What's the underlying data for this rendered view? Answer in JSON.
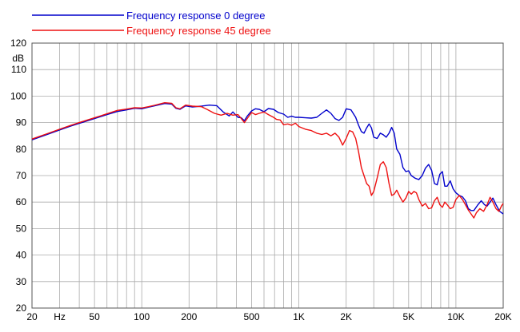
{
  "chart_data": {
    "type": "line",
    "title": "",
    "xlabel": "Hz",
    "ylabel": "dB",
    "x_scale": "log",
    "xlim": [
      20,
      20000
    ],
    "ylim": [
      20,
      120
    ],
    "grid": true,
    "legend_position": "top-left",
    "x_ticks": [
      {
        "value": 20,
        "label": "20"
      },
      {
        "value": 30,
        "label": "Hz"
      },
      {
        "value": 50,
        "label": "50"
      },
      {
        "value": 100,
        "label": "100"
      },
      {
        "value": 200,
        "label": "200"
      },
      {
        "value": 500,
        "label": "500"
      },
      {
        "value": 1000,
        "label": "1K"
      },
      {
        "value": 2000,
        "label": "2K"
      },
      {
        "value": 5000,
        "label": "5K"
      },
      {
        "value": 10000,
        "label": "10K"
      },
      {
        "value": 20000,
        "label": "20K"
      }
    ],
    "y_ticks": [
      {
        "value": 20,
        "label": "20"
      },
      {
        "value": 30,
        "label": "30"
      },
      {
        "value": 40,
        "label": "40"
      },
      {
        "value": 50,
        "label": "50"
      },
      {
        "value": 60,
        "label": "60"
      },
      {
        "value": 70,
        "label": "70"
      },
      {
        "value": 80,
        "label": "80"
      },
      {
        "value": 90,
        "label": "90"
      },
      {
        "value": 100,
        "label": "100"
      },
      {
        "value": 110,
        "label": "110"
      },
      {
        "value": 120,
        "label": "120"
      }
    ],
    "series": [
      {
        "name": "Frequency response 0 degree",
        "color": "#0000cc",
        "points": [
          [
            20,
            83.5
          ],
          [
            25,
            85.5
          ],
          [
            30,
            87.2
          ],
          [
            35,
            88.6
          ],
          [
            40,
            89.7
          ],
          [
            50,
            91.5
          ],
          [
            60,
            93.0
          ],
          [
            70,
            94.2
          ],
          [
            80,
            94.8
          ],
          [
            90,
            95.4
          ],
          [
            100,
            95.2
          ],
          [
            110,
            95.8
          ],
          [
            120,
            96.3
          ],
          [
            140,
            97.2
          ],
          [
            155,
            97.0
          ],
          [
            165,
            95.4
          ],
          [
            175,
            95.0
          ],
          [
            190,
            96.3
          ],
          [
            210,
            95.9
          ],
          [
            240,
            96.2
          ],
          [
            270,
            96.6
          ],
          [
            300,
            96.4
          ],
          [
            330,
            94.0
          ],
          [
            360,
            92.5
          ],
          [
            380,
            94.0
          ],
          [
            410,
            92.0
          ],
          [
            430,
            91.8
          ],
          [
            450,
            90.7
          ],
          [
            470,
            92.5
          ],
          [
            500,
            94.4
          ],
          [
            530,
            95.2
          ],
          [
            560,
            95.0
          ],
          [
            600,
            94.1
          ],
          [
            640,
            95.3
          ],
          [
            690,
            95.0
          ],
          [
            740,
            93.8
          ],
          [
            800,
            93.2
          ],
          [
            850,
            92.0
          ],
          [
            900,
            92.4
          ],
          [
            950,
            92.0
          ],
          [
            1000,
            92.0
          ],
          [
            1100,
            91.8
          ],
          [
            1200,
            91.7
          ],
          [
            1300,
            92.0
          ],
          [
            1400,
            93.5
          ],
          [
            1500,
            94.8
          ],
          [
            1600,
            93.5
          ],
          [
            1700,
            91.5
          ],
          [
            1800,
            90.8
          ],
          [
            1900,
            92.0
          ],
          [
            2000,
            95.2
          ],
          [
            2150,
            94.8
          ],
          [
            2300,
            92.0
          ],
          [
            2400,
            89.0
          ],
          [
            2500,
            86.6
          ],
          [
            2600,
            86.0
          ],
          [
            2700,
            88.0
          ],
          [
            2800,
            89.5
          ],
          [
            2900,
            88.0
          ],
          [
            3000,
            84.5
          ],
          [
            3150,
            84.0
          ],
          [
            3300,
            86.0
          ],
          [
            3450,
            85.4
          ],
          [
            3600,
            84.5
          ],
          [
            3750,
            86.0
          ],
          [
            3900,
            88.2
          ],
          [
            4050,
            86.0
          ],
          [
            4200,
            80.0
          ],
          [
            4400,
            78.0
          ],
          [
            4600,
            73.0
          ],
          [
            4800,
            71.5
          ],
          [
            5000,
            71.8
          ],
          [
            5200,
            70.0
          ],
          [
            5500,
            69.0
          ],
          [
            5800,
            68.5
          ],
          [
            6100,
            70.0
          ],
          [
            6400,
            72.8
          ],
          [
            6700,
            74.2
          ],
          [
            7000,
            72.0
          ],
          [
            7300,
            67.0
          ],
          [
            7600,
            66.5
          ],
          [
            7900,
            70.5
          ],
          [
            8200,
            71.5
          ],
          [
            8500,
            66.0
          ],
          [
            8800,
            66.0
          ],
          [
            9200,
            68.0
          ],
          [
            9600,
            65.0
          ],
          [
            10000,
            63.5
          ],
          [
            10500,
            62.5
          ],
          [
            11000,
            62.0
          ],
          [
            11500,
            60.5
          ],
          [
            12000,
            57.5
          ],
          [
            12500,
            56.8
          ],
          [
            13000,
            56.8
          ],
          [
            13800,
            59.0
          ],
          [
            14500,
            60.5
          ],
          [
            15200,
            59.0
          ],
          [
            15800,
            58.5
          ],
          [
            16500,
            60.0
          ],
          [
            17200,
            61.5
          ],
          [
            18000,
            59.0
          ],
          [
            19000,
            56.5
          ],
          [
            20000,
            55.5
          ]
        ]
      },
      {
        "name": "Frequency response 45 degree",
        "color": "#ee1111",
        "points": [
          [
            20,
            83.8
          ],
          [
            25,
            85.8
          ],
          [
            30,
            87.5
          ],
          [
            35,
            88.9
          ],
          [
            40,
            90.0
          ],
          [
            50,
            91.8
          ],
          [
            60,
            93.3
          ],
          [
            70,
            94.6
          ],
          [
            80,
            95.1
          ],
          [
            90,
            95.6
          ],
          [
            100,
            95.5
          ],
          [
            110,
            96.0
          ],
          [
            120,
            96.5
          ],
          [
            140,
            97.5
          ],
          [
            155,
            97.3
          ],
          [
            165,
            95.6
          ],
          [
            175,
            95.2
          ],
          [
            190,
            96.6
          ],
          [
            210,
            96.2
          ],
          [
            240,
            96.0
          ],
          [
            260,
            95.0
          ],
          [
            290,
            93.5
          ],
          [
            320,
            92.8
          ],
          [
            350,
            93.5
          ],
          [
            380,
            92.8
          ],
          [
            410,
            93.0
          ],
          [
            430,
            91.5
          ],
          [
            450,
            90.0
          ],
          [
            475,
            92.0
          ],
          [
            500,
            93.8
          ],
          [
            530,
            93.0
          ],
          [
            560,
            93.5
          ],
          [
            600,
            94.0
          ],
          [
            640,
            93.0
          ],
          [
            690,
            92.0
          ],
          [
            720,
            91.2
          ],
          [
            760,
            91.0
          ],
          [
            800,
            89.2
          ],
          [
            850,
            89.5
          ],
          [
            900,
            89.0
          ],
          [
            950,
            89.8
          ],
          [
            1000,
            88.5
          ],
          [
            1100,
            87.5
          ],
          [
            1200,
            87.0
          ],
          [
            1300,
            86.0
          ],
          [
            1400,
            85.5
          ],
          [
            1500,
            86.0
          ],
          [
            1600,
            85.0
          ],
          [
            1700,
            86.0
          ],
          [
            1800,
            84.5
          ],
          [
            1900,
            81.5
          ],
          [
            2000,
            84.0
          ],
          [
            2100,
            87.0
          ],
          [
            2200,
            86.5
          ],
          [
            2300,
            84.0
          ],
          [
            2400,
            79.0
          ],
          [
            2500,
            73.0
          ],
          [
            2600,
            70.0
          ],
          [
            2700,
            67.0
          ],
          [
            2800,
            66.0
          ],
          [
            2900,
            62.5
          ],
          [
            3000,
            64.0
          ],
          [
            3150,
            69.0
          ],
          [
            3300,
            74.2
          ],
          [
            3450,
            75.2
          ],
          [
            3600,
            73.0
          ],
          [
            3750,
            67.0
          ],
          [
            3900,
            62.5
          ],
          [
            4050,
            63.0
          ],
          [
            4200,
            64.5
          ],
          [
            4400,
            62.0
          ],
          [
            4600,
            60.0
          ],
          [
            4800,
            61.5
          ],
          [
            5000,
            64.0
          ],
          [
            5200,
            63.0
          ],
          [
            5400,
            64.0
          ],
          [
            5600,
            63.5
          ],
          [
            5800,
            61.0
          ],
          [
            6100,
            58.5
          ],
          [
            6400,
            59.5
          ],
          [
            6700,
            57.5
          ],
          [
            7000,
            57.8
          ],
          [
            7300,
            60.5
          ],
          [
            7600,
            61.8
          ],
          [
            7900,
            59.0
          ],
          [
            8200,
            58.0
          ],
          [
            8500,
            60.0
          ],
          [
            8800,
            59.0
          ],
          [
            9200,
            57.5
          ],
          [
            9600,
            58.0
          ],
          [
            10000,
            61.0
          ],
          [
            10500,
            62.5
          ],
          [
            11000,
            61.0
          ],
          [
            11500,
            59.0
          ],
          [
            12000,
            57.0
          ],
          [
            12500,
            55.5
          ],
          [
            13000,
            54.0
          ],
          [
            13500,
            56.0
          ],
          [
            14200,
            57.5
          ],
          [
            15000,
            56.5
          ],
          [
            15800,
            59.0
          ],
          [
            16500,
            61.8
          ],
          [
            17200,
            60.0
          ],
          [
            18000,
            57.5
          ],
          [
            18800,
            56.5
          ],
          [
            19500,
            58.5
          ],
          [
            20000,
            59.5
          ]
        ]
      }
    ]
  }
}
